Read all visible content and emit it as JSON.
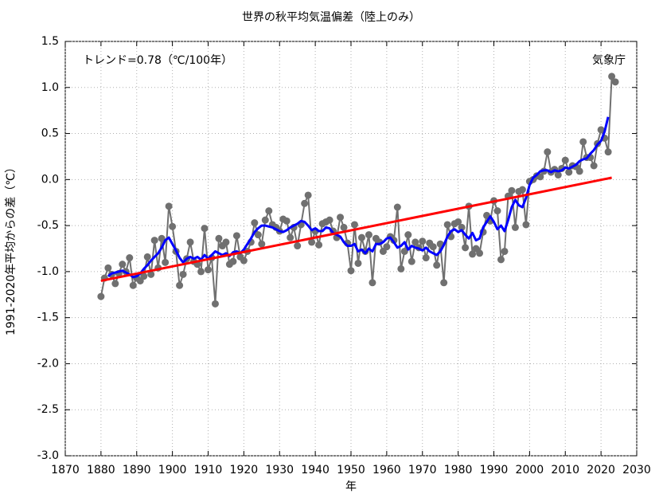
{
  "chart_data": {
    "type": "line",
    "title": "世界の秋平均気温偏差（陸上のみ）",
    "xlabel": "年",
    "ylabel": "1991-2020年平均からの差（℃）",
    "annotations": [
      "トレンド=0.78（℃/100年）",
      "気象庁"
    ],
    "xlim": [
      1870,
      2030
    ],
    "xticks": [
      1870,
      1880,
      1890,
      1900,
      1910,
      1920,
      1930,
      1940,
      1950,
      1960,
      1970,
      1980,
      1990,
      2000,
      2010,
      2020,
      2030
    ],
    "ylim": [
      -3.0,
      1.5
    ],
    "yticks": [
      1.5,
      {
        "value": 1.0,
        "label": "1.0"
      },
      0.5,
      {
        "value": 0.0,
        "label": "0.0"
      },
      -0.5,
      {
        "value": -1.0,
        "label": "-1.0"
      },
      -1.5,
      {
        "value": -2.0,
        "label": "-2.0"
      },
      -2.5,
      {
        "value": -3.0,
        "label": "-3.0"
      }
    ],
    "grid": true,
    "series": [
      {
        "color": "#707070",
        "markers": true,
        "x": [
          1880,
          1881,
          1882,
          1883,
          1884,
          1885,
          1886,
          1887,
          1888,
          1889,
          1890,
          1891,
          1892,
          1893,
          1894,
          1895,
          1896,
          1897,
          1898,
          1899,
          1900,
          1901,
          1902,
          1903,
          1904,
          1905,
          1906,
          1907,
          1908,
          1909,
          1910,
          1911,
          1912,
          1913,
          1914,
          1915,
          1916,
          1917,
          1918,
          1919,
          1920,
          1921,
          1922,
          1923,
          1924,
          1925,
          1926,
          1927,
          1928,
          1929,
          1930,
          1931,
          1932,
          1933,
          1934,
          1935,
          1936,
          1937,
          1938,
          1939,
          1940,
          1941,
          1942,
          1943,
          1944,
          1945,
          1946,
          1947,
          1948,
          1949,
          1950,
          1951,
          1952,
          1953,
          1954,
          1955,
          1956,
          1957,
          1958,
          1959,
          1960,
          1961,
          1962,
          1963,
          1964,
          1965,
          1966,
          1967,
          1968,
          1969,
          1970,
          1971,
          1972,
          1973,
          1974,
          1975,
          1976,
          1977,
          1978,
          1979,
          1980,
          1981,
          1982,
          1983,
          1984,
          1985,
          1986,
          1987,
          1988,
          1989,
          1990,
          1991,
          1992,
          1993,
          1994,
          1995,
          1996,
          1997,
          1998,
          1999,
          2000,
          2001,
          2002,
          2003,
          2004,
          2005,
          2006,
          2007,
          2008,
          2009,
          2010,
          2011,
          2012,
          2013,
          2014,
          2015,
          2016,
          2017,
          2018,
          2019,
          2020,
          2021,
          2022,
          2023,
          2024
        ],
        "values": [
          -1.27,
          -1.07,
          -0.96,
          -1.03,
          -1.13,
          -1.02,
          -0.92,
          -1.0,
          -0.85,
          -1.15,
          -1.07,
          -1.1,
          -1.05,
          -0.84,
          -1.03,
          -0.66,
          -0.96,
          -0.64,
          -0.9,
          -0.29,
          -0.51,
          -0.78,
          -1.15,
          -1.03,
          -0.86,
          -0.68,
          -0.89,
          -0.92,
          -1.0,
          -0.53,
          -0.98,
          -0.85,
          -1.35,
          -0.64,
          -0.72,
          -0.68,
          -0.92,
          -0.89,
          -0.61,
          -0.84,
          -0.88,
          -0.78,
          -0.68,
          -0.47,
          -0.6,
          -0.7,
          -0.44,
          -0.34,
          -0.49,
          -0.52,
          -0.56,
          -0.43,
          -0.45,
          -0.63,
          -0.52,
          -0.72,
          -0.49,
          -0.26,
          -0.17,
          -0.68,
          -0.56,
          -0.71,
          -0.48,
          -0.46,
          -0.44,
          -0.56,
          -0.63,
          -0.41,
          -0.52,
          -0.69,
          -0.99,
          -0.49,
          -0.91,
          -0.63,
          -0.78,
          -0.6,
          -1.12,
          -0.64,
          -0.68,
          -0.78,
          -0.73,
          -0.62,
          -0.66,
          -0.3,
          -0.97,
          -0.78,
          -0.6,
          -0.89,
          -0.68,
          -0.74,
          -0.67,
          -0.85,
          -0.69,
          -0.73,
          -0.93,
          -0.7,
          -1.12,
          -0.49,
          -0.62,
          -0.48,
          -0.46,
          -0.52,
          -0.74,
          -0.29,
          -0.81,
          -0.75,
          -0.8,
          -0.57,
          -0.39,
          -0.45,
          -0.23,
          -0.34,
          -0.87,
          -0.78,
          -0.18,
          -0.12,
          -0.52,
          -0.13,
          -0.11,
          -0.49,
          -0.02,
          0.0,
          0.04,
          0.03,
          0.09,
          0.3,
          0.08,
          0.11,
          0.05,
          0.12,
          0.21,
          0.08,
          0.15,
          0.14,
          0.09,
          0.41,
          0.24,
          0.24,
          0.15,
          0.39,
          0.54,
          0.45,
          0.3,
          1.12,
          1.06
        ]
      },
      {
        "color": "#0000ff",
        "markers": false,
        "x": [
          1882,
          1883,
          1884,
          1885,
          1886,
          1887,
          1888,
          1889,
          1890,
          1891,
          1892,
          1893,
          1894,
          1895,
          1896,
          1897,
          1898,
          1899,
          1900,
          1901,
          1902,
          1903,
          1904,
          1905,
          1906,
          1907,
          1908,
          1909,
          1910,
          1911,
          1912,
          1913,
          1914,
          1915,
          1916,
          1917,
          1918,
          1919,
          1920,
          1921,
          1922,
          1923,
          1924,
          1925,
          1926,
          1927,
          1928,
          1929,
          1930,
          1931,
          1932,
          1933,
          1934,
          1935,
          1936,
          1937,
          1938,
          1939,
          1940,
          1941,
          1942,
          1943,
          1944,
          1945,
          1946,
          1947,
          1948,
          1949,
          1950,
          1951,
          1952,
          1953,
          1954,
          1955,
          1956,
          1957,
          1958,
          1959,
          1960,
          1961,
          1962,
          1963,
          1964,
          1965,
          1966,
          1967,
          1968,
          1969,
          1970,
          1971,
          1972,
          1973,
          1974,
          1975,
          1976,
          1977,
          1978,
          1979,
          1980,
          1981,
          1982,
          1983,
          1984,
          1985,
          1986,
          1987,
          1988,
          1989,
          1990,
          1991,
          1992,
          1993,
          1994,
          1995,
          1996,
          1997,
          1998,
          1999,
          2000,
          2001,
          2002,
          2003,
          2004,
          2005,
          2006,
          2007,
          2008,
          2009,
          2010,
          2011,
          2012,
          2013,
          2014,
          2015,
          2016,
          2017,
          2018,
          2019,
          2020,
          2021,
          2022
        ],
        "values": [
          -1.05,
          -1.02,
          -1.01,
          -1.0,
          -0.99,
          -1.01,
          -1.03,
          -1.06,
          -1.05,
          -1.02,
          -0.97,
          -0.93,
          -0.88,
          -0.84,
          -0.8,
          -0.74,
          -0.66,
          -0.63,
          -0.7,
          -0.77,
          -0.85,
          -0.9,
          -0.86,
          -0.84,
          -0.86,
          -0.84,
          -0.87,
          -0.82,
          -0.86,
          -0.82,
          -0.78,
          -0.8,
          -0.82,
          -0.8,
          -0.83,
          -0.79,
          -0.78,
          -0.8,
          -0.76,
          -0.7,
          -0.64,
          -0.57,
          -0.53,
          -0.5,
          -0.5,
          -0.51,
          -0.52,
          -0.54,
          -0.56,
          -0.57,
          -0.55,
          -0.52,
          -0.5,
          -0.48,
          -0.45,
          -0.46,
          -0.5,
          -0.55,
          -0.53,
          -0.56,
          -0.56,
          -0.52,
          -0.53,
          -0.58,
          -0.6,
          -0.62,
          -0.68,
          -0.72,
          -0.72,
          -0.7,
          -0.78,
          -0.76,
          -0.8,
          -0.75,
          -0.78,
          -0.7,
          -0.7,
          -0.68,
          -0.64,
          -0.63,
          -0.68,
          -0.74,
          -0.72,
          -0.68,
          -0.76,
          -0.72,
          -0.74,
          -0.75,
          -0.77,
          -0.74,
          -0.78,
          -0.8,
          -0.82,
          -0.78,
          -0.71,
          -0.62,
          -0.56,
          -0.54,
          -0.57,
          -0.55,
          -0.6,
          -0.64,
          -0.58,
          -0.66,
          -0.64,
          -0.52,
          -0.46,
          -0.4,
          -0.46,
          -0.54,
          -0.5,
          -0.56,
          -0.44,
          -0.3,
          -0.22,
          -0.28,
          -0.3,
          -0.2,
          -0.06,
          0.02,
          0.05,
          0.09,
          0.1,
          0.1,
          0.08,
          0.1,
          0.09,
          0.1,
          0.13,
          0.12,
          0.14,
          0.16,
          0.2,
          0.22,
          0.23,
          0.28,
          0.32,
          0.38,
          0.42,
          0.52,
          0.68
        ]
      },
      {
        "color": "#ff0000",
        "markers": false,
        "x": [
          1880,
          2023
        ],
        "values": [
          -1.1,
          0.02
        ]
      }
    ]
  }
}
